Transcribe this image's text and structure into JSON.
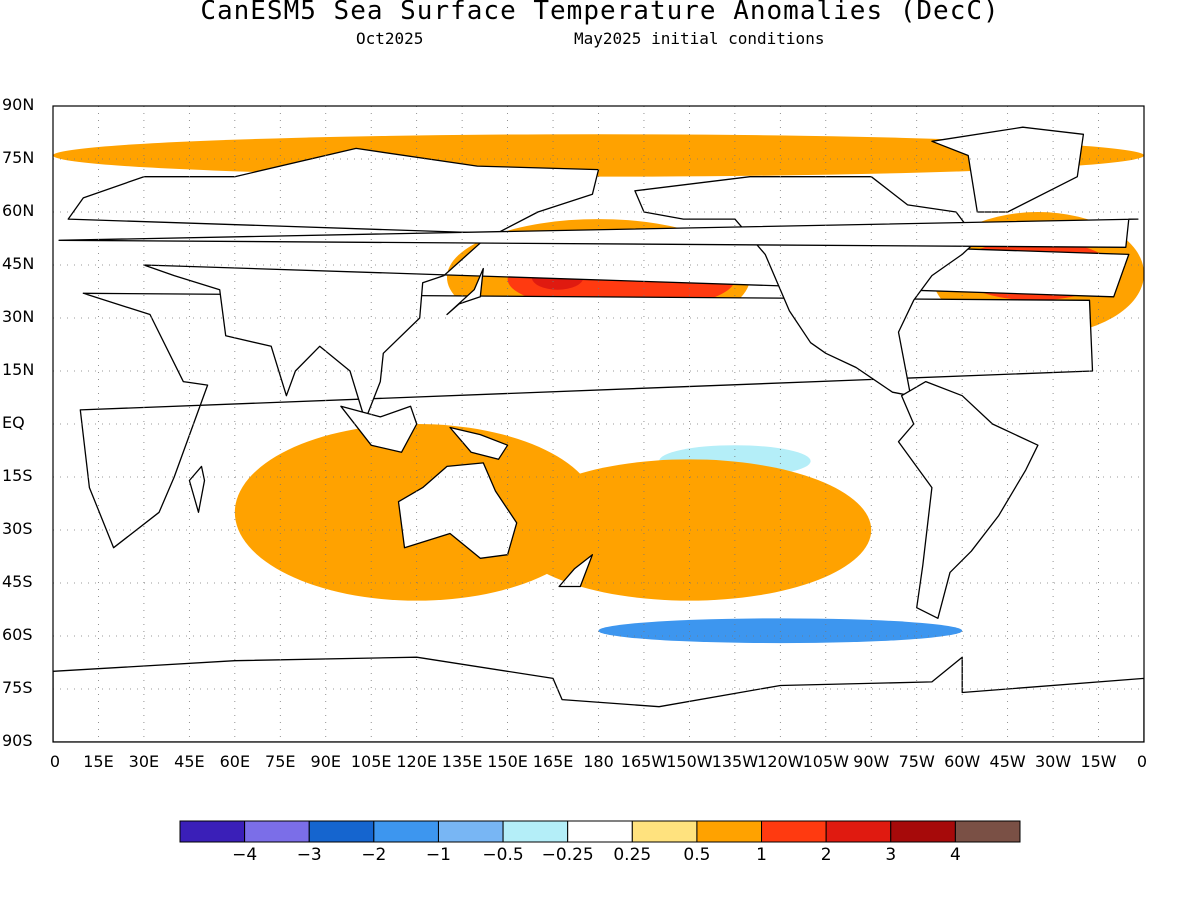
{
  "header": {
    "title": "CanESM5 Sea Surface Temperature Anomalies (DecC)",
    "valid_month": "Oct2025",
    "initial_conditions": "May2025 initial conditions"
  },
  "axes": {
    "lat_ticks": [
      "90N",
      "75N",
      "60N",
      "45N",
      "30N",
      "15N",
      "EQ",
      "15S",
      "30S",
      "45S",
      "60S",
      "75S",
      "90S"
    ],
    "lon_ticks": [
      "0",
      "15E",
      "30E",
      "45E",
      "60E",
      "75E",
      "90E",
      "105E",
      "120E",
      "135E",
      "150E",
      "165E",
      "180",
      "165W",
      "150W",
      "135W",
      "120W",
      "105W",
      "90W",
      "75W",
      "60W",
      "45W",
      "30W",
      "15W",
      "0"
    ],
    "grid": "dotted"
  },
  "colorbar": {
    "colors": [
      "#3a1fb8",
      "#7b6ee8",
      "#1565cf",
      "#3d96ef",
      "#78b6f4",
      "#b4eef8",
      "#ffffff",
      "#ffe27e",
      "#ffa200",
      "#ff3a10",
      "#e01a10",
      "#a60a0a",
      "#7a5045"
    ],
    "labels": [
      "-4",
      "-3",
      "-2",
      "-1",
      "-0.5",
      "-0.25",
      "0.25",
      "0.5",
      "1",
      "2",
      "3",
      "4"
    ]
  },
  "chart_data": {
    "type": "heatmap",
    "variable": "Sea Surface Temperature Anomalies (DecC)",
    "model": "CanESM5",
    "valid": "Oct2025",
    "init": "May2025",
    "xlim": [
      0,
      360
    ],
    "ylim": [
      -90,
      90
    ],
    "levels": [
      -4,
      -3,
      -2,
      -1,
      -0.5,
      -0.25,
      0.25,
      0.5,
      1,
      2,
      3,
      4
    ],
    "regions": [
      {
        "lon": [
          130,
          230
        ],
        "lat": [
          25,
          58
        ],
        "level": 1
      },
      {
        "lon": [
          150,
          225
        ],
        "lat": [
          32,
          50
        ],
        "level": 2
      },
      {
        "lon": [
          158,
          175
        ],
        "lat": [
          38,
          45
        ],
        "level": 3
      },
      {
        "lon": [
          180,
          280
        ],
        "lat": [
          -5,
          15
        ],
        "level": 0.25
      },
      {
        "lon": [
          200,
          250
        ],
        "lat": [
          -15,
          -6
        ],
        "level": -0.25
      },
      {
        "lon": [
          290,
          360
        ],
        "lat": [
          25,
          60
        ],
        "level": 1
      },
      {
        "lon": [
          298,
          350
        ],
        "lat": [
          35,
          52
        ],
        "level": 2
      },
      {
        "lon": [
          150,
          270
        ],
        "lat": [
          -50,
          -10
        ],
        "level": 1
      },
      {
        "lon": [
          60,
          180
        ],
        "lat": [
          -50,
          0
        ],
        "level": 1
      },
      {
        "lon": [
          180,
          300
        ],
        "lat": [
          -62,
          -55
        ],
        "level": -1
      },
      {
        "lon": [
          0,
          360
        ],
        "lat": [
          70,
          82
        ],
        "level": 1
      }
    ]
  }
}
